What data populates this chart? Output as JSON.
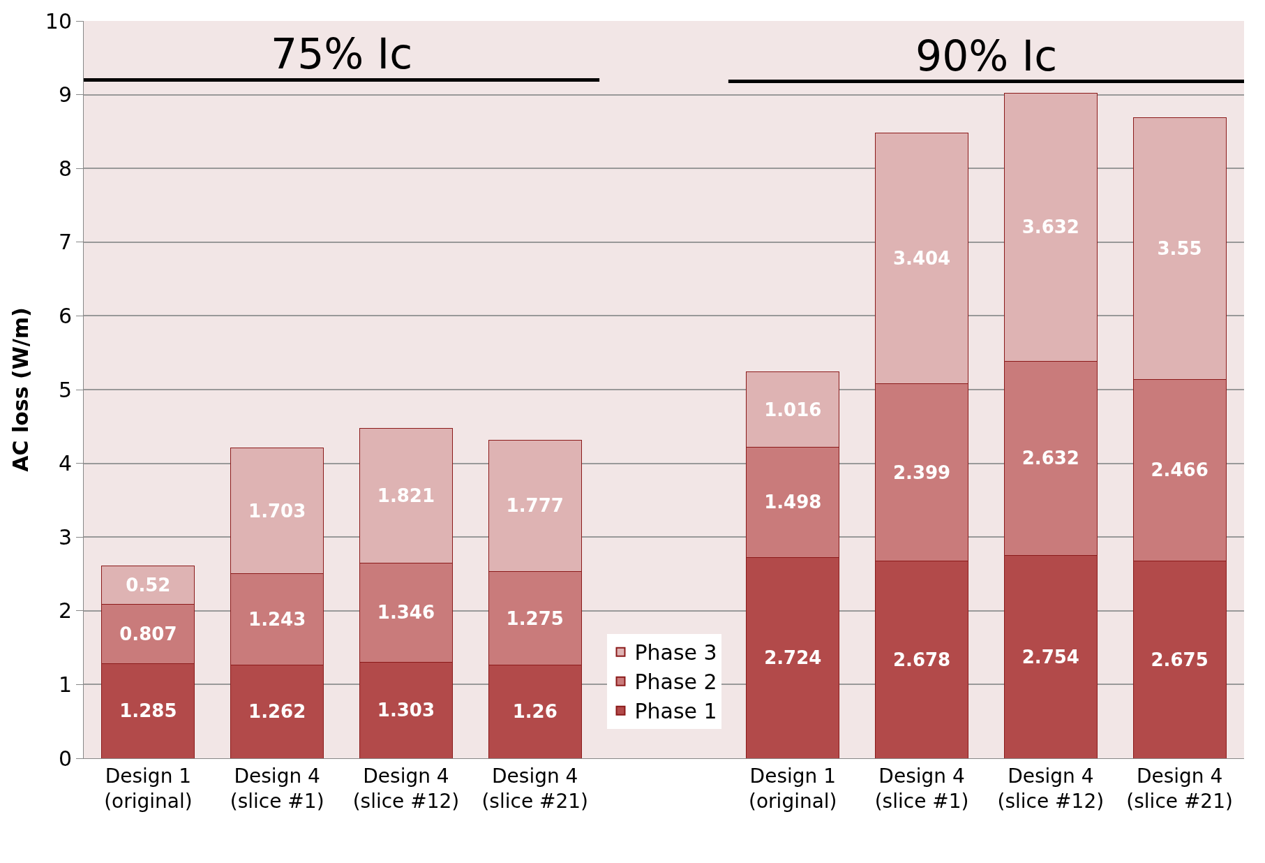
{
  "chart_data": {
    "type": "bar",
    "stacked": true,
    "ylabel": "AC loss (W/m)",
    "categories": [
      "Design 1\n(original)",
      "Design 4\n(slice #1)",
      "Design 4\n(slice #12)",
      "Design 4\n(slice #21)",
      null,
      "Design 1\n(original)",
      "Design 4\n(slice #1)",
      "Design 4\n(slice #12)",
      "Design 4\n(slice #21)"
    ],
    "series": [
      {
        "name": "Phase 1",
        "color": "#b24a4a",
        "values": [
          1.285,
          1.262,
          1.303,
          1.26,
          null,
          2.724,
          2.678,
          2.754,
          2.675
        ]
      },
      {
        "name": "Phase 2",
        "color": "#c97b7b",
        "values": [
          0.807,
          1.243,
          1.346,
          1.275,
          null,
          1.498,
          2.399,
          2.632,
          2.466
        ]
      },
      {
        "name": "Phase 3",
        "color": "#deb3b3",
        "values": [
          0.52,
          1.703,
          1.821,
          1.777,
          null,
          1.016,
          3.404,
          3.632,
          3.55
        ]
      }
    ],
    "ref_lines": [
      {
        "axis": "y",
        "value": 9.2,
        "label": "75% Ic",
        "color": "#000000"
      },
      {
        "axis": "y",
        "value": 9.18,
        "label": "90% Ic",
        "color": "#000000"
      }
    ],
    "ylim": [
      0,
      10
    ],
    "yticks": [
      0,
      1,
      2,
      3,
      4,
      5,
      6,
      7,
      8,
      9,
      10
    ],
    "grid": "y",
    "legend": "bottom",
    "data_labels": true
  }
}
